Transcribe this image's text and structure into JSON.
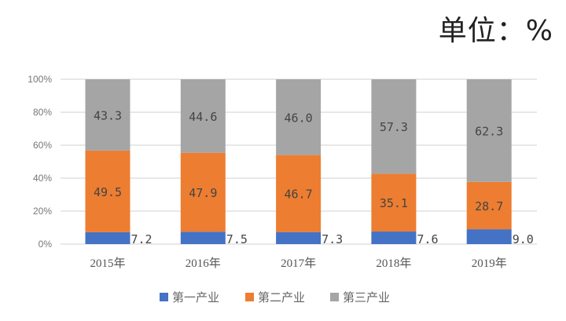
{
  "unit_label": "单位：%",
  "chart_data": {
    "type": "bar",
    "stacked": true,
    "categories": [
      "2015年",
      "2016年",
      "2017年",
      "2018年",
      "2019年"
    ],
    "series": [
      {
        "name": "第一产业",
        "color": "#4472c4",
        "values": [
          7.2,
          7.5,
          7.3,
          7.6,
          9.0
        ],
        "labels": [
          "7.2",
          "7.5",
          "7.3",
          "7.6",
          "9.0"
        ]
      },
      {
        "name": "第二产业",
        "color": "#ed7d31",
        "values": [
          49.5,
          47.9,
          46.7,
          35.1,
          28.7
        ],
        "labels": [
          "49.5",
          "47.9",
          "46.7",
          "35.1",
          "28.7"
        ]
      },
      {
        "name": "第三产业",
        "color": "#a5a5a5",
        "values": [
          43.3,
          44.6,
          46.0,
          57.3,
          62.3
        ],
        "labels": [
          "43.3",
          "44.6",
          "46.0",
          "57.3",
          "62.3"
        ]
      }
    ],
    "yticks": [
      "0%",
      "20%",
      "40%",
      "60%",
      "80%",
      "100%"
    ],
    "ylim": [
      0,
      100
    ],
    "grid": true,
    "legend": "bottom"
  }
}
